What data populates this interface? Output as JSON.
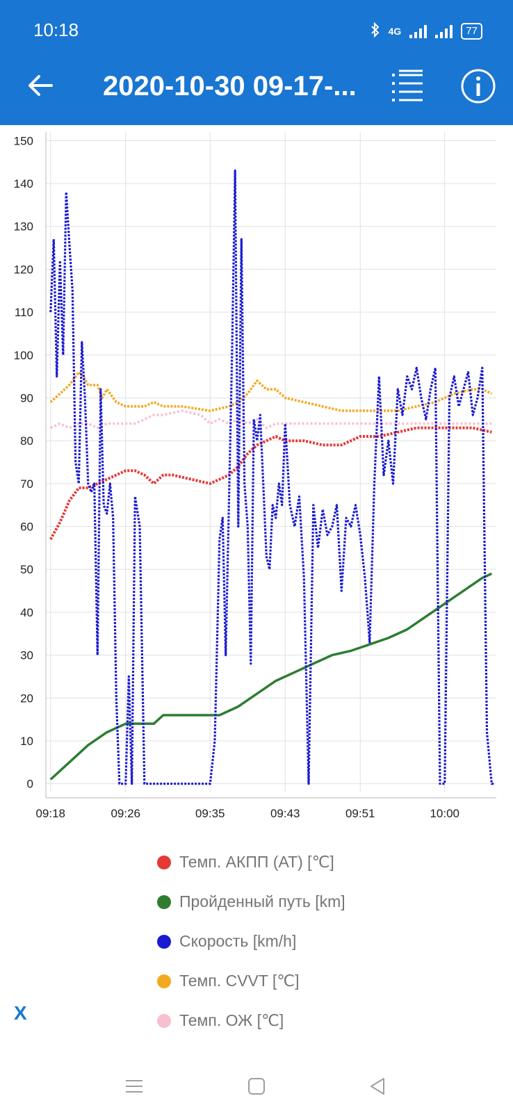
{
  "status_bar": {
    "time": "10:18",
    "network": "4G",
    "battery": "77",
    "icons": [
      "bluetooth-icon",
      "signal-icon",
      "battery-icon"
    ]
  },
  "toolbar": {
    "title": "2020-10-30 09-17-...",
    "icons": [
      "arrow-back-icon",
      "list-icon",
      "info-icon"
    ]
  },
  "close_label": "X",
  "colors": {
    "appbar": "#1976d2",
    "grid": "#e0e0e0",
    "axis_text": "#222222"
  },
  "chart_data": {
    "type": "line",
    "x_unit": "minutes",
    "xlim": [
      "09:17:30",
      "10:05:30"
    ],
    "ylim": [
      -2,
      152
    ],
    "y_ticks": [
      0,
      10,
      20,
      30,
      40,
      50,
      60,
      70,
      80,
      90,
      100,
      110,
      120,
      130,
      140,
      150
    ],
    "x_ticks": [
      "09:18",
      "09:26",
      "09:35",
      "09:43",
      "09:51",
      "10:00"
    ],
    "grid": true,
    "legend_position": "bottom",
    "series": [
      {
        "name": "Темп. АКПП (AT) [℃]",
        "color": "#e53935",
        "x": [
          "09:18:00",
          "09:19:00",
          "09:20:00",
          "09:21:00",
          "09:22:00",
          "09:23:00",
          "09:24:00",
          "09:25:00",
          "09:26:00",
          "09:27:00",
          "09:28:00",
          "09:29:00",
          "09:30:00",
          "09:31:00",
          "09:33:00",
          "09:35:00",
          "09:36:00",
          "09:37:00",
          "09:38:00",
          "09:39:00",
          "09:40:00",
          "09:41:00",
          "09:42:00",
          "09:43:00",
          "09:45:00",
          "09:47:00",
          "09:49:00",
          "09:51:00",
          "09:53:00",
          "09:55:00",
          "09:57:00",
          "10:00:00",
          "10:03:00",
          "10:05:00"
        ],
        "y": [
          57,
          61,
          66,
          69,
          69,
          70,
          71,
          72,
          73,
          73,
          72,
          70,
          72,
          72,
          71,
          70,
          71,
          72,
          74,
          77,
          79,
          80,
          81,
          80,
          80,
          79,
          79,
          81,
          81,
          82,
          83,
          83,
          83,
          82
        ]
      },
      {
        "name": "Пройденный путь [km]",
        "color": "#2e7d32",
        "x": [
          "09:18:00",
          "09:20:00",
          "09:22:00",
          "09:24:00",
          "09:26:00",
          "09:27:00",
          "09:29:00",
          "09:30:00",
          "09:33:00",
          "09:35:30",
          "09:36:00",
          "09:38:00",
          "09:40:00",
          "09:42:00",
          "09:44:00",
          "09:46:00",
          "09:48:00",
          "09:50:00",
          "09:52:00",
          "09:54:00",
          "09:56:00",
          "09:58:00",
          "10:00:00",
          "10:02:00",
          "10:04:00",
          "10:05:00"
        ],
        "y": [
          1,
          5,
          9,
          12,
          14,
          14,
          14,
          16,
          16,
          16,
          16,
          18,
          21,
          24,
          26,
          28,
          30,
          31,
          32.5,
          34,
          36,
          39,
          42,
          45,
          48,
          49
        ]
      },
      {
        "name": "Скорость [km/h]",
        "color": "#1a1ad0",
        "x": [
          "09:18:00",
          "09:18:20",
          "09:18:40",
          "09:19:00",
          "09:19:20",
          "09:19:40",
          "09:20:00",
          "09:20:20",
          "09:20:40",
          "09:21:00",
          "09:21:20",
          "09:21:40",
          "09:22:00",
          "09:22:20",
          "09:22:40",
          "09:23:00",
          "09:23:20",
          "09:23:40",
          "09:24:00",
          "09:24:20",
          "09:24:40",
          "09:25:00",
          "09:25:20",
          "09:25:40",
          "09:26:00",
          "09:26:20",
          "09:26:40",
          "09:27:00",
          "09:27:30",
          "09:28:00",
          "09:28:20",
          "09:28:40",
          "09:29:00",
          "09:29:20",
          "09:29:40",
          "09:30:00",
          "09:30:30",
          "09:31:00",
          "09:32:00",
          "09:33:00",
          "09:34:00",
          "09:35:00",
          "09:35:30",
          "09:36:00",
          "09:36:20",
          "09:36:40",
          "09:37:00",
          "09:37:20",
          "09:37:40",
          "09:38:00",
          "09:38:20",
          "09:38:40",
          "09:39:00",
          "09:39:20",
          "09:39:40",
          "09:40:00",
          "09:40:20",
          "09:40:40",
          "09:41:00",
          "09:41:20",
          "09:41:40",
          "09:42:00",
          "09:42:20",
          "09:42:40",
          "09:43:00",
          "09:43:30",
          "09:44:00",
          "09:44:30",
          "09:45:00",
          "09:45:30",
          "09:46:00",
          "09:46:30",
          "09:47:00",
          "09:47:30",
          "09:48:00",
          "09:48:30",
          "09:49:00",
          "09:49:30",
          "09:50:00",
          "09:50:30",
          "09:51:00",
          "09:51:30",
          "09:52:00",
          "09:52:30",
          "09:53:00",
          "09:53:30",
          "09:54:00",
          "09:54:30",
          "09:55:00",
          "09:55:30",
          "09:56:00",
          "09:56:30",
          "09:57:00",
          "09:57:30",
          "09:58:00",
          "09:58:30",
          "09:59:00",
          "09:59:30",
          "10:00:00",
          "10:00:30",
          "10:01:00",
          "10:01:30",
          "10:02:00",
          "10:02:30",
          "10:03:00",
          "10:03:30",
          "10:04:00",
          "10:04:30",
          "10:05:00",
          "10:05:20"
        ],
        "y": [
          110,
          127,
          95,
          122,
          100,
          138,
          126,
          115,
          75,
          70,
          103,
          90,
          70,
          68,
          70,
          30,
          92,
          65,
          63,
          70,
          62,
          20,
          0,
          0,
          0,
          25,
          0,
          67,
          60,
          0,
          0,
          0,
          0,
          0,
          0,
          0,
          0,
          0,
          0,
          0,
          0,
          0,
          10,
          57,
          62,
          30,
          65,
          100,
          143,
          60,
          127,
          70,
          60,
          28,
          85,
          80,
          86,
          70,
          53,
          50,
          65,
          62,
          70,
          65,
          84,
          65,
          60,
          67,
          48,
          0,
          65,
          55,
          64,
          58,
          60,
          65,
          45,
          62,
          60,
          65,
          58,
          48,
          33,
          70,
          95,
          72,
          80,
          70,
          92,
          86,
          95,
          92,
          97,
          90,
          85,
          92,
          97,
          0,
          0,
          90,
          95,
          88,
          92,
          96,
          86,
          90,
          97,
          12,
          0,
          0
        ]
      },
      {
        "name": "Темп. CVVT [℃]",
        "color": "#f4a820",
        "x": [
          "09:18:00",
          "09:19:00",
          "09:20:00",
          "09:21:00",
          "09:21:30",
          "09:22:00",
          "09:23:00",
          "09:23:30",
          "09:24:00",
          "09:25:00",
          "09:26:00",
          "09:27:00",
          "09:28:00",
          "09:29:00",
          "09:30:00",
          "09:32:00",
          "09:35:00",
          "09:37:00",
          "09:38:00",
          "09:39:00",
          "09:40:00",
          "09:41:00",
          "09:42:00",
          "09:43:00",
          "09:45:00",
          "09:47:00",
          "09:49:00",
          "09:51:00",
          "09:53:00",
          "09:55:00",
          "09:57:00",
          "09:59:00",
          "10:01:00",
          "10:03:00",
          "10:04:00",
          "10:05:00"
        ],
        "y": [
          89,
          91,
          93,
          96,
          95,
          93,
          93,
          90,
          92,
          89,
          88,
          88,
          88,
          89,
          88,
          88,
          87,
          88,
          89,
          91,
          94,
          92,
          92,
          90,
          89,
          88,
          87,
          87,
          87,
          87,
          88,
          89,
          91,
          92,
          92,
          91
        ]
      },
      {
        "name": "Темп. ОЖ [℃]",
        "color": "#f8bfcf",
        "x": [
          "09:18:00",
          "09:19:00",
          "09:20:00",
          "09:21:00",
          "09:22:00",
          "09:23:00",
          "09:24:00",
          "09:25:00",
          "09:26:00",
          "09:27:00",
          "09:28:00",
          "09:29:00",
          "09:30:00",
          "09:32:00",
          "09:34:00",
          "09:35:00",
          "09:36:00",
          "09:37:00",
          "09:38:00",
          "09:39:00",
          "09:40:00",
          "09:41:00",
          "09:42:00",
          "09:43:00",
          "09:45:00",
          "09:47:00",
          "09:49:00",
          "09:51:00",
          "09:53:00",
          "09:55:00",
          "09:57:00",
          "09:59:00",
          "10:01:00",
          "10:03:00",
          "10:05:00"
        ],
        "y": [
          83,
          84,
          83,
          84,
          84,
          83,
          84,
          84,
          84,
          84,
          85,
          86,
          86,
          87,
          86,
          84,
          85,
          84,
          85,
          84,
          85,
          83,
          84,
          84,
          84,
          84,
          84,
          84,
          84,
          84,
          84,
          84,
          84,
          84,
          84
        ]
      }
    ]
  }
}
